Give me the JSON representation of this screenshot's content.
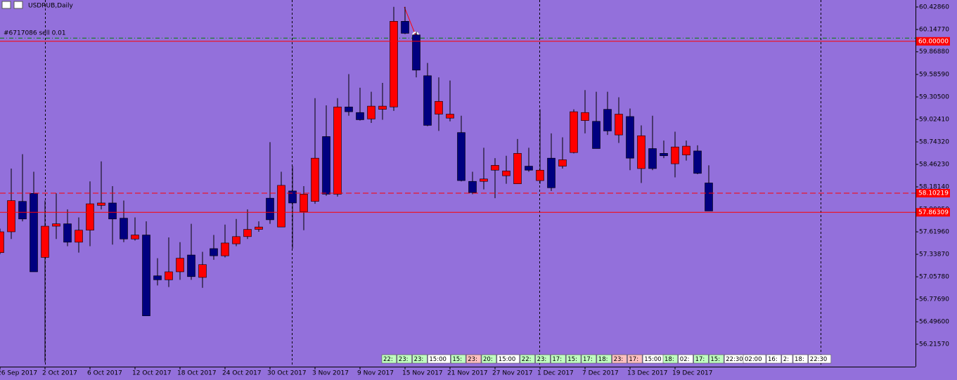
{
  "chart_data": {
    "type": "candlestick",
    "title": "USDRUB,Daily",
    "categories": [
      "26 Sep 2017",
      null,
      null,
      null,
      "2 Oct 2017",
      null,
      null,
      null,
      "6 Oct 2017",
      null,
      null,
      null,
      "12 Oct 2017",
      null,
      null,
      null,
      "18 Oct 2017",
      null,
      null,
      null,
      "24 Oct 2017",
      null,
      null,
      null,
      "30 Oct 2017",
      null,
      null,
      null,
      "3 Nov 2017",
      null,
      null,
      null,
      "9 Nov 2017",
      null,
      null,
      null,
      "15 Nov 2017",
      null,
      null,
      null,
      "21 Nov 2017",
      null,
      null,
      null,
      "27 Nov 2017",
      null,
      null,
      null,
      "1 Dec 2017",
      null,
      null,
      null,
      "7 Dec 2017",
      null,
      null,
      null,
      "13 Dec 2017",
      null,
      null,
      null,
      "19 Dec 2017",
      null,
      null,
      null
    ],
    "open": [
      57.36,
      57.62,
      58.0,
      58.1,
      57.3,
      57.69,
      57.72,
      57.49,
      57.64,
      57.95,
      57.98,
      57.79,
      57.53,
      57.58,
      57.07,
      57.02,
      57.12,
      57.33,
      57.05,
      57.41,
      57.32,
      57.47,
      57.56,
      57.65,
      58.04,
      57.68,
      58.13,
      57.87,
      58.0,
      58.81,
      58.09,
      59.18,
      59.11,
      59.03,
      59.15,
      59.18,
      60.25,
      60.08,
      59.57,
      59.09,
      59.04,
      58.86,
      58.25,
      58.25,
      58.39,
      58.32,
      58.22,
      58.44,
      58.26,
      58.54,
      58.44,
      58.61,
      59.01,
      59.0,
      59.15,
      58.83,
      59.06,
      58.41,
      58.66,
      58.6,
      58.47,
      58.58,
      58.63,
      58.23
    ],
    "high": [
      57.66,
      58.41,
      58.59,
      58.37,
      58.01,
      58.1,
      57.9,
      57.8,
      58.25,
      58.5,
      58.19,
      58.01,
      57.8,
      57.75,
      57.29,
      57.55,
      57.49,
      57.72,
      57.37,
      57.58,
      57.71,
      57.78,
      57.9,
      57.75,
      58.74,
      58.37,
      58.44,
      58.19,
      59.29,
      59.2,
      59.29,
      59.59,
      59.42,
      59.37,
      59.48,
      60.43,
      60.43,
      60.12,
      59.73,
      59.55,
      59.51,
      59.07,
      58.37,
      58.67,
      58.54,
      58.57,
      58.78,
      58.67,
      59.15,
      58.85,
      58.8,
      59.15,
      59.39,
      59.37,
      59.37,
      59.3,
      59.16,
      58.95,
      59.07,
      58.76,
      58.87,
      58.76,
      58.7,
      58.45
    ],
    "low": [
      57.34,
      57.53,
      57.75,
      57.12,
      55.99,
      57.53,
      57.44,
      57.36,
      57.44,
      57.9,
      57.46,
      57.49,
      57.51,
      56.57,
      56.95,
      56.93,
      57.02,
      57.02,
      56.92,
      57.27,
      57.3,
      57.44,
      57.53,
      57.62,
      57.72,
      57.68,
      57.41,
      57.64,
      57.97,
      58.07,
      58.06,
      59.07,
      59.01,
      58.98,
      59.02,
      59.13,
      60.09,
      59.55,
      58.94,
      58.88,
      59.0,
      58.25,
      58.09,
      58.15,
      58.04,
      58.22,
      58.22,
      58.37,
      58.22,
      58.13,
      58.41,
      58.6,
      58.85,
      58.66,
      58.83,
      58.73,
      58.39,
      58.23,
      58.39,
      58.54,
      58.3,
      58.51,
      58.34,
      57.88
    ],
    "close": [
      57.62,
      58.01,
      57.78,
      57.12,
      57.69,
      57.72,
      57.49,
      57.64,
      57.97,
      57.98,
      57.78,
      57.53,
      57.58,
      56.57,
      57.02,
      57.12,
      57.29,
      57.06,
      57.21,
      57.32,
      57.48,
      57.56,
      57.65,
      57.68,
      57.77,
      58.2,
      57.98,
      58.09,
      58.54,
      58.09,
      59.18,
      59.12,
      59.02,
      59.19,
      59.19,
      60.25,
      60.1,
      59.64,
      58.95,
      59.25,
      59.09,
      58.26,
      58.11,
      58.28,
      58.45,
      58.38,
      58.6,
      58.39,
      58.39,
      58.17,
      58.52,
      59.12,
      59.11,
      58.66,
      58.88,
      59.09,
      58.54,
      58.82,
      58.41,
      58.57,
      58.68,
      58.69,
      58.35,
      57.88
    ],
    "up_color": "#ff0000",
    "down_color": "#000080",
    "ylim": [
      55.935,
      60.516
    ],
    "yticks": [
      {
        "value": 60.4286,
        "label": "60.42860"
      },
      {
        "value": 60.1477,
        "label": "60.14770"
      },
      {
        "value": 59.8688,
        "label": "59.86880"
      },
      {
        "value": 59.5859,
        "label": "59.58590"
      },
      {
        "value": 59.305,
        "label": "59.30500"
      },
      {
        "value": 59.0241,
        "label": "59.02410"
      },
      {
        "value": 58.7432,
        "label": "58.74320"
      },
      {
        "value": 58.4623,
        "label": "58.46230"
      },
      {
        "value": 58.1814,
        "label": "58.18140"
      },
      {
        "value": 57.9005,
        "label": "57.90050"
      },
      {
        "value": 57.6196,
        "label": "57.61960"
      },
      {
        "value": 57.3387,
        "label": "57.33870"
      },
      {
        "value": 57.0578,
        "label": "57.05780"
      },
      {
        "value": 56.7769,
        "label": "56.77690"
      },
      {
        "value": 56.496,
        "label": "56.49600"
      },
      {
        "value": 56.2157,
        "label": "56.21570"
      }
    ],
    "hlines": [
      {
        "value": 60.0,
        "label": "60.00000",
        "color": "#ff0000",
        "dashed": false
      },
      {
        "value": 58.10219,
        "label": "58.10219",
        "color": "#ff0000",
        "dashed": true
      },
      {
        "value": 57.86309,
        "label": "57.86309",
        "color": "#ff0000",
        "dashed": false
      }
    ],
    "order_line": {
      "value": 60.04,
      "label": "#6717086 sell 0.01",
      "color": "#008000"
    },
    "event_tags": [
      [
        {
          "label": "22:",
          "color": "#c0ffc0"
        },
        {
          "label": "23:",
          "color": "#c0ffc0"
        },
        {
          "label": "23:",
          "color": "#c0ffc0"
        },
        {
          "label": "15:00",
          "color": "#ffffff"
        },
        {
          "label": "15:",
          "color": "#c0ffc0"
        },
        {
          "label": "23:",
          "color": "#ffc0c0"
        },
        {
          "label": "20:",
          "color": "#c0ffc0"
        },
        {
          "label": "15:00",
          "color": "#ffffff"
        },
        {
          "label": "22:",
          "color": "#c0ffc0"
        },
        {
          "label": "23:",
          "color": "#c0ffc0"
        },
        {
          "label": "17:",
          "color": "#c0ffc0"
        },
        {
          "label": "15:",
          "color": "#c0ffc0"
        },
        {
          "label": "17:",
          "color": "#c0ffc0"
        },
        {
          "label": "18:",
          "color": "#c0ffc0"
        },
        {
          "label": "23:",
          "color": "#ffc0c0"
        },
        {
          "label": "17:",
          "color": "#ffc0c0"
        },
        {
          "label": "15:00",
          "color": "#ffffff"
        }
      ],
      [
        {
          "label": "18:",
          "color": "#c0ffc0"
        },
        {
          "label": "02:",
          "color": "#ffffff"
        },
        {
          "label": "17:",
          "color": "#c0ffc0"
        },
        {
          "label": "15:",
          "color": "#c0ffc0"
        },
        {
          "label": "22:30",
          "color": "#ffffff"
        }
      ],
      [
        {
          "label": "02:00",
          "color": "#ffffff"
        },
        {
          "label": "16:",
          "color": "#ffffff"
        },
        {
          "label": "2:",
          "color": "#ffffff"
        },
        {
          "label": "18:",
          "color": "#ffffff"
        },
        {
          "label": "22:30",
          "color": "#ffffff"
        }
      ]
    ]
  }
}
